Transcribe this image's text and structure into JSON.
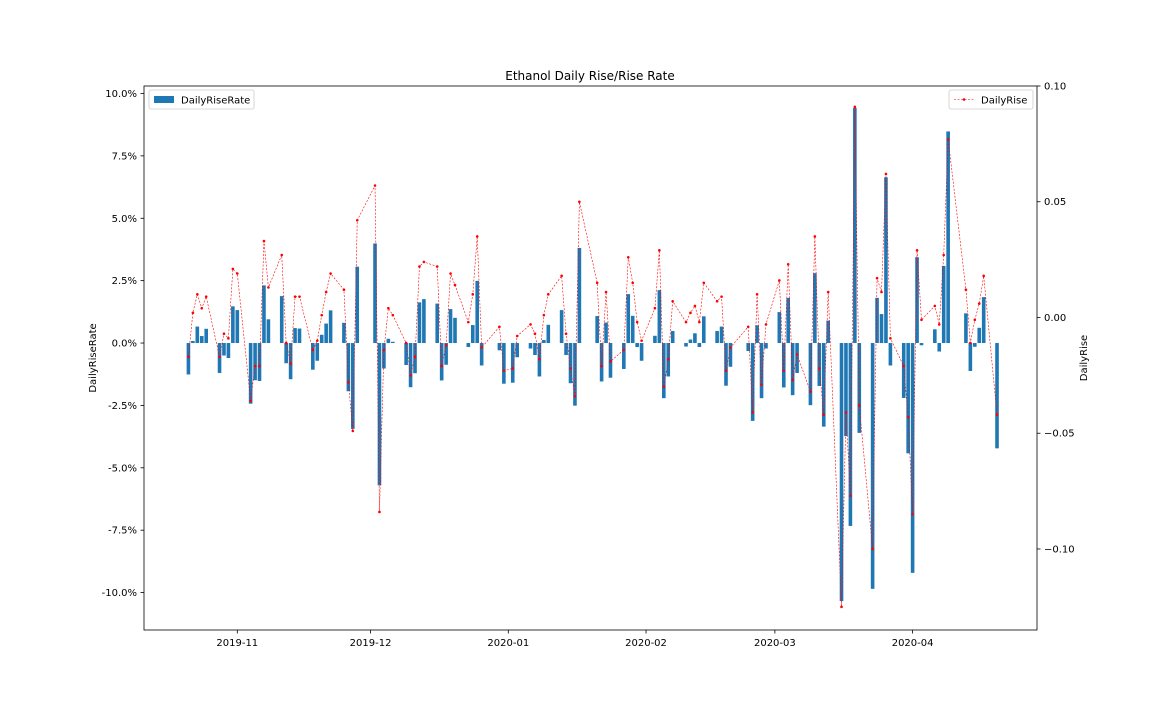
{
  "chart_data": {
    "type": "bar+line",
    "title": "Ethanol Daily Rise/Rise Rate",
    "x_ticks": [
      "2019-11",
      "2019-12",
      "2020-01",
      "2020-02",
      "2020-03",
      "2020-04"
    ],
    "x_tick_dates": [
      "2019-11-01",
      "2019-12-01",
      "2020-01-01",
      "2020-02-01",
      "2020-03-01",
      "2020-04-01"
    ],
    "xlim": [
      "2019-10-11",
      "2020-04-29"
    ],
    "left_axis": {
      "label": "DailyRiseRate",
      "ylim": [
        -0.115,
        0.103
      ],
      "tick_values": [
        0.1,
        0.075,
        0.05,
        0.025,
        0.0,
        -0.025,
        -0.05,
        -0.075,
        -0.1
      ],
      "tick_labels": [
        "10.0%",
        "7.5%",
        "5.0%",
        "2.5%",
        "0.0%",
        "-2.5%",
        "-5.0%",
        "-7.5%",
        "-10.0%"
      ]
    },
    "right_axis": {
      "label": "DailyRise",
      "ylim": [
        -0.135,
        0.1
      ],
      "tick_values": [
        0.1,
        0.05,
        0.0,
        -0.05,
        -0.1
      ],
      "tick_labels": [
        "0.10",
        "0.05",
        "0.00",
        "−0.05",
        "−0.10"
      ]
    },
    "legend": {
      "bars": {
        "label": "DailyRiseRate",
        "placement": "top-left"
      },
      "line": {
        "label": "DailyRise",
        "placement": "top-right"
      }
    },
    "colors": {
      "bar": "#1f77b4",
      "line": "#ff0000"
    },
    "series": [
      {
        "name": "DailyRiseRate",
        "kind": "bar",
        "axis": "left",
        "points": [
          [
            "2019-10-21",
            -0.0126
          ],
          [
            "2019-10-22",
            0.0008
          ],
          [
            "2019-10-23",
            0.0066
          ],
          [
            "2019-10-24",
            0.0028
          ],
          [
            "2019-10-25",
            0.0057
          ],
          [
            "2019-10-28",
            -0.012
          ],
          [
            "2019-10-29",
            -0.005
          ],
          [
            "2019-10-30",
            -0.006
          ],
          [
            "2019-10-31",
            0.0147
          ],
          [
            "2019-11-01",
            0.0132
          ],
          [
            "2019-11-04",
            -0.0243
          ],
          [
            "2019-11-05",
            -0.0149
          ],
          [
            "2019-11-06",
            -0.0152
          ],
          [
            "2019-11-07",
            0.0231
          ],
          [
            "2019-11-08",
            0.0095
          ],
          [
            "2019-11-11",
            0.0188
          ],
          [
            "2019-11-12",
            -0.0081
          ],
          [
            "2019-11-13",
            -0.0145
          ],
          [
            "2019-11-14",
            0.006
          ],
          [
            "2019-11-15",
            0.0058
          ],
          [
            "2019-11-18",
            -0.0107
          ],
          [
            "2019-11-19",
            -0.0071
          ],
          [
            "2019-11-20",
            0.0033
          ],
          [
            "2019-11-21",
            0.0078
          ],
          [
            "2019-11-22",
            0.0131
          ],
          [
            "2019-11-25",
            0.0081
          ],
          [
            "2019-11-26",
            -0.0193
          ],
          [
            "2019-11-27",
            -0.0344
          ],
          [
            "2019-11-28",
            0.0306
          ],
          [
            "2019-12-02",
            0.0399
          ],
          [
            "2019-12-03",
            -0.057
          ],
          [
            "2019-12-04",
            -0.0102
          ],
          [
            "2019-12-05",
            0.0017
          ],
          [
            "2019-12-06",
            0.0005
          ],
          [
            "2019-12-09",
            -0.0088
          ],
          [
            "2019-12-10",
            -0.0177
          ],
          [
            "2019-12-11",
            -0.0121
          ],
          [
            "2019-12-12",
            0.0163
          ],
          [
            "2019-12-13",
            0.0176
          ],
          [
            "2019-12-16",
            0.0158
          ],
          [
            "2019-12-17",
            -0.015
          ],
          [
            "2019-12-18",
            -0.0087
          ],
          [
            "2019-12-19",
            0.0136
          ],
          [
            "2019-12-20",
            0.0101
          ],
          [
            "2019-12-23",
            -0.0016
          ],
          [
            "2019-12-24",
            0.0072
          ],
          [
            "2019-12-25",
            0.0249
          ],
          [
            "2019-12-26",
            -0.009
          ],
          [
            "2019-12-30",
            -0.0029
          ],
          [
            "2019-12-31",
            -0.0163
          ],
          [
            "2020-01-02",
            -0.0159
          ],
          [
            "2020-01-03",
            -0.0057
          ],
          [
            "2020-01-06",
            -0.0022
          ],
          [
            "2020-01-07",
            -0.0048
          ],
          [
            "2020-01-08",
            -0.0134
          ],
          [
            "2020-01-09",
            0.0012
          ],
          [
            "2020-01-10",
            0.0073
          ],
          [
            "2020-01-13",
            0.0132
          ],
          [
            "2020-01-14",
            -0.0048
          ],
          [
            "2020-01-15",
            -0.0161
          ],
          [
            "2020-01-16",
            -0.0251
          ],
          [
            "2020-01-17",
            0.0381
          ],
          [
            "2020-01-21",
            0.0108
          ],
          [
            "2020-01-22",
            -0.0154
          ],
          [
            "2020-01-23",
            0.0082
          ],
          [
            "2020-01-24",
            -0.0139
          ],
          [
            "2020-01-27",
            -0.0104
          ],
          [
            "2020-01-28",
            0.0196
          ],
          [
            "2020-01-29",
            0.0109
          ],
          [
            "2020-01-30",
            -0.0016
          ],
          [
            "2020-01-31",
            -0.0071
          ],
          [
            "2020-02-03",
            0.0029
          ],
          [
            "2020-02-04",
            0.0212
          ],
          [
            "2020-02-05",
            -0.0221
          ],
          [
            "2020-02-06",
            -0.0134
          ],
          [
            "2020-02-07",
            0.0048
          ],
          [
            "2020-02-10",
            -0.0014
          ],
          [
            "2020-02-11",
            0.0014
          ],
          [
            "2020-02-12",
            0.0039
          ],
          [
            "2020-02-13",
            -0.0016
          ],
          [
            "2020-02-14",
            0.0107
          ],
          [
            "2020-02-17",
            0.0048
          ],
          [
            "2020-02-18",
            0.0066
          ],
          [
            "2020-02-19",
            -0.0171
          ],
          [
            "2020-02-20",
            -0.0095
          ],
          [
            "2020-02-24",
            -0.0032
          ],
          [
            "2020-02-25",
            -0.0312
          ],
          [
            "2020-02-26",
            0.0071
          ],
          [
            "2020-02-27",
            -0.0221
          ],
          [
            "2020-02-28",
            -0.0022
          ],
          [
            "2020-03-02",
            0.0124
          ],
          [
            "2020-03-03",
            -0.0178
          ],
          [
            "2020-03-04",
            0.0181
          ],
          [
            "2020-03-05",
            -0.0209
          ],
          [
            "2020-03-06",
            -0.012
          ],
          [
            "2020-03-09",
            -0.0249
          ],
          [
            "2020-03-10",
            0.028
          ],
          [
            "2020-03-11",
            -0.0172
          ],
          [
            "2020-03-12",
            -0.0335
          ],
          [
            "2020-03-13",
            0.009
          ],
          [
            "2020-03-16",
            -0.1034
          ],
          [
            "2020-03-17",
            -0.0373
          ],
          [
            "2020-03-18",
            -0.0733
          ],
          [
            "2020-03-19",
            0.0942
          ],
          [
            "2020-03-20",
            -0.036
          ],
          [
            "2020-03-23",
            -0.0985
          ],
          [
            "2020-03-24",
            0.0181
          ],
          [
            "2020-03-25",
            0.0116
          ],
          [
            "2020-03-26",
            0.0664
          ],
          [
            "2020-03-27",
            -0.009
          ],
          [
            "2020-03-30",
            -0.022
          ],
          [
            "2020-03-31",
            -0.0442
          ],
          [
            "2020-04-01",
            -0.0921
          ],
          [
            "2020-04-02",
            0.0344
          ],
          [
            "2020-04-03",
            -0.0009
          ],
          [
            "2020-04-06",
            0.0055
          ],
          [
            "2020-04-07",
            -0.0034
          ],
          [
            "2020-04-08",
            0.0309
          ],
          [
            "2020-04-09",
            0.0848
          ],
          [
            "2020-04-13",
            0.0119
          ],
          [
            "2020-04-14",
            -0.0112
          ],
          [
            "2020-04-15",
            -0.0015
          ],
          [
            "2020-04-16",
            0.0061
          ],
          [
            "2020-04-17",
            0.0184
          ],
          [
            "2020-04-20",
            -0.0422
          ]
        ]
      },
      {
        "name": "DailyRise",
        "kind": "line",
        "axis": "right",
        "points": [
          [
            "2019-10-21",
            -0.017
          ],
          [
            "2019-10-22",
            0.002
          ],
          [
            "2019-10-23",
            0.01
          ],
          [
            "2019-10-24",
            0.004
          ],
          [
            "2019-10-25",
            0.009
          ],
          [
            "2019-10-28",
            -0.017
          ],
          [
            "2019-10-29",
            -0.007
          ],
          [
            "2019-10-30",
            -0.009
          ],
          [
            "2019-10-31",
            0.021
          ],
          [
            "2019-11-01",
            0.019
          ],
          [
            "2019-11-04",
            -0.036
          ],
          [
            "2019-11-05",
            -0.021
          ],
          [
            "2019-11-06",
            -0.021
          ],
          [
            "2019-11-07",
            0.033
          ],
          [
            "2019-11-08",
            0.013
          ],
          [
            "2019-11-11",
            0.027
          ],
          [
            "2019-11-12",
            -0.011
          ],
          [
            "2019-11-13",
            -0.02
          ],
          [
            "2019-11-14",
            0.009
          ],
          [
            "2019-11-15",
            0.009
          ],
          [
            "2019-11-18",
            -0.014
          ],
          [
            "2019-11-19",
            -0.01
          ],
          [
            "2019-11-20",
            0.001
          ],
          [
            "2019-11-21",
            0.011
          ],
          [
            "2019-11-22",
            0.019
          ],
          [
            "2019-11-25",
            0.012
          ],
          [
            "2019-11-26",
            -0.028
          ],
          [
            "2019-11-27",
            -0.049
          ],
          [
            "2019-11-28",
            0.042
          ],
          [
            "2019-12-02",
            0.057
          ],
          [
            "2019-12-03",
            -0.084
          ],
          [
            "2019-12-04",
            -0.014
          ],
          [
            "2019-12-05",
            0.004
          ],
          [
            "2019-12-06",
            0.001
          ],
          [
            "2019-12-09",
            -0.011
          ],
          [
            "2019-12-10",
            -0.025
          ],
          [
            "2019-12-11",
            -0.017
          ],
          [
            "2019-12-12",
            0.022
          ],
          [
            "2019-12-13",
            0.024
          ],
          [
            "2019-12-16",
            0.022
          ],
          [
            "2019-12-17",
            -0.021
          ],
          [
            "2019-12-18",
            -0.012
          ],
          [
            "2019-12-19",
            0.019
          ],
          [
            "2019-12-20",
            0.014
          ],
          [
            "2019-12-23",
            -0.002
          ],
          [
            "2019-12-24",
            0.01
          ],
          [
            "2019-12-25",
            0.035
          ],
          [
            "2019-12-26",
            -0.013
          ],
          [
            "2019-12-30",
            -0.004
          ],
          [
            "2019-12-31",
            -0.023
          ],
          [
            "2020-01-02",
            -0.022
          ],
          [
            "2020-01-03",
            -0.008
          ],
          [
            "2020-01-06",
            -0.003
          ],
          [
            "2020-01-07",
            -0.007
          ],
          [
            "2020-01-08",
            -0.018
          ],
          [
            "2020-01-09",
            0.001
          ],
          [
            "2020-01-10",
            0.01
          ],
          [
            "2020-01-13",
            0.018
          ],
          [
            "2020-01-14",
            -0.007
          ],
          [
            "2020-01-15",
            -0.022
          ],
          [
            "2020-01-16",
            -0.034
          ],
          [
            "2020-01-17",
            0.05
          ],
          [
            "2020-01-21",
            0.015
          ],
          [
            "2020-01-22",
            -0.021
          ],
          [
            "2020-01-23",
            0.011
          ],
          [
            "2020-01-24",
            -0.019
          ],
          [
            "2020-01-27",
            -0.014
          ],
          [
            "2020-01-28",
            0.026
          ],
          [
            "2020-01-29",
            0.015
          ],
          [
            "2020-01-30",
            -0.002
          ],
          [
            "2020-01-31",
            -0.01
          ],
          [
            "2020-02-03",
            0.004
          ],
          [
            "2020-02-04",
            0.029
          ],
          [
            "2020-02-05",
            -0.03
          ],
          [
            "2020-02-06",
            -0.018
          ],
          [
            "2020-02-07",
            0.007
          ],
          [
            "2020-02-10",
            -0.002
          ],
          [
            "2020-02-11",
            0.002
          ],
          [
            "2020-02-12",
            0.005
          ],
          [
            "2020-02-13",
            -0.002
          ],
          [
            "2020-02-14",
            0.015
          ],
          [
            "2020-02-17",
            0.007
          ],
          [
            "2020-02-18",
            0.009
          ],
          [
            "2020-02-19",
            -0.023
          ],
          [
            "2020-02-20",
            -0.013
          ],
          [
            "2020-02-24",
            -0.004
          ],
          [
            "2020-02-25",
            -0.041
          ],
          [
            "2020-02-26",
            0.01
          ],
          [
            "2020-02-27",
            -0.029
          ],
          [
            "2020-02-28",
            -0.003
          ],
          [
            "2020-03-02",
            0.016
          ],
          [
            "2020-03-03",
            -0.023
          ],
          [
            "2020-03-04",
            0.023
          ],
          [
            "2020-03-05",
            -0.027
          ],
          [
            "2020-03-06",
            -0.016
          ],
          [
            "2020-03-09",
            -0.032
          ],
          [
            "2020-03-10",
            0.035
          ],
          [
            "2020-03-11",
            -0.022
          ],
          [
            "2020-03-12",
            -0.042
          ],
          [
            "2020-03-13",
            0.011
          ],
          [
            "2020-03-16",
            -0.125
          ],
          [
            "2020-03-17",
            -0.041
          ],
          [
            "2020-03-18",
            -0.077
          ],
          [
            "2020-03-19",
            0.091
          ],
          [
            "2020-03-20",
            -0.038
          ],
          [
            "2020-03-23",
            -0.1
          ],
          [
            "2020-03-24",
            0.017
          ],
          [
            "2020-03-25",
            0.011
          ],
          [
            "2020-03-26",
            0.062
          ],
          [
            "2020-03-27",
            -0.009
          ],
          [
            "2020-03-30",
            -0.021
          ],
          [
            "2020-03-31",
            -0.043
          ],
          [
            "2020-04-01",
            -0.085
          ],
          [
            "2020-04-02",
            0.029
          ],
          [
            "2020-04-03",
            -0.001
          ],
          [
            "2020-04-06",
            0.005
          ],
          [
            "2020-04-07",
            -0.003
          ],
          [
            "2020-04-08",
            0.027
          ],
          [
            "2020-04-09",
            0.077
          ],
          [
            "2020-04-13",
            0.012
          ],
          [
            "2020-04-14",
            -0.011
          ],
          [
            "2020-04-15",
            -0.001
          ],
          [
            "2020-04-16",
            0.006
          ],
          [
            "2020-04-17",
            0.018
          ],
          [
            "2020-04-20",
            -0.042
          ]
        ]
      }
    ]
  }
}
